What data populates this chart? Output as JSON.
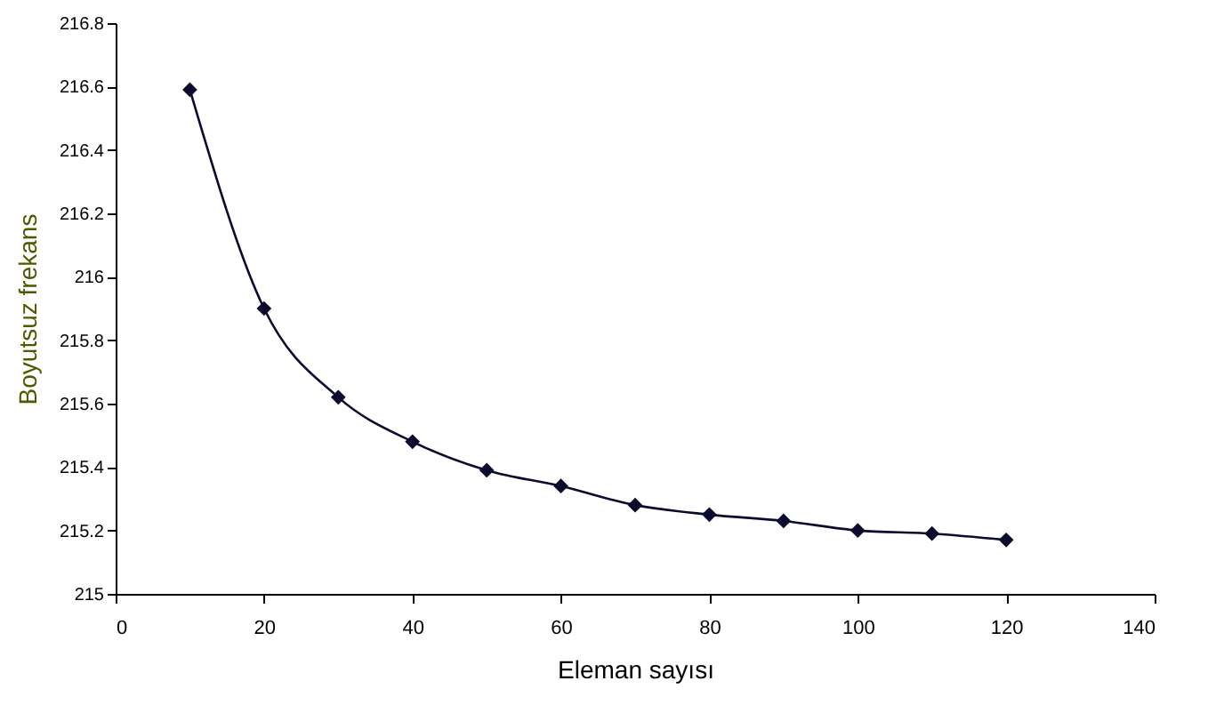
{
  "chart_data": {
    "type": "line",
    "xlabel": "Eleman sayısı",
    "ylabel": "Boyutsuz frekans",
    "x": [
      10,
      20,
      30,
      40,
      50,
      60,
      70,
      80,
      90,
      100,
      110,
      120
    ],
    "series": [
      {
        "color": "#0b0b2e",
        "values": [
          216.59,
          215.9,
          215.62,
          215.48,
          215.39,
          215.34,
          215.28,
          215.25,
          215.23,
          215.2,
          215.19,
          215.17
        ]
      }
    ],
    "xlim": [
      0,
      140
    ],
    "xticks": [
      0,
      20,
      40,
      60,
      80,
      100,
      120,
      140
    ],
    "ylim": [
      215,
      216.8
    ],
    "yticks": [
      215,
      215.2,
      215.4,
      215.6,
      215.8,
      216,
      216.2,
      216.4,
      216.6,
      216.8
    ],
    "grid": false,
    "legend": false,
    "marker": "diamond",
    "line_style": "solid"
  }
}
